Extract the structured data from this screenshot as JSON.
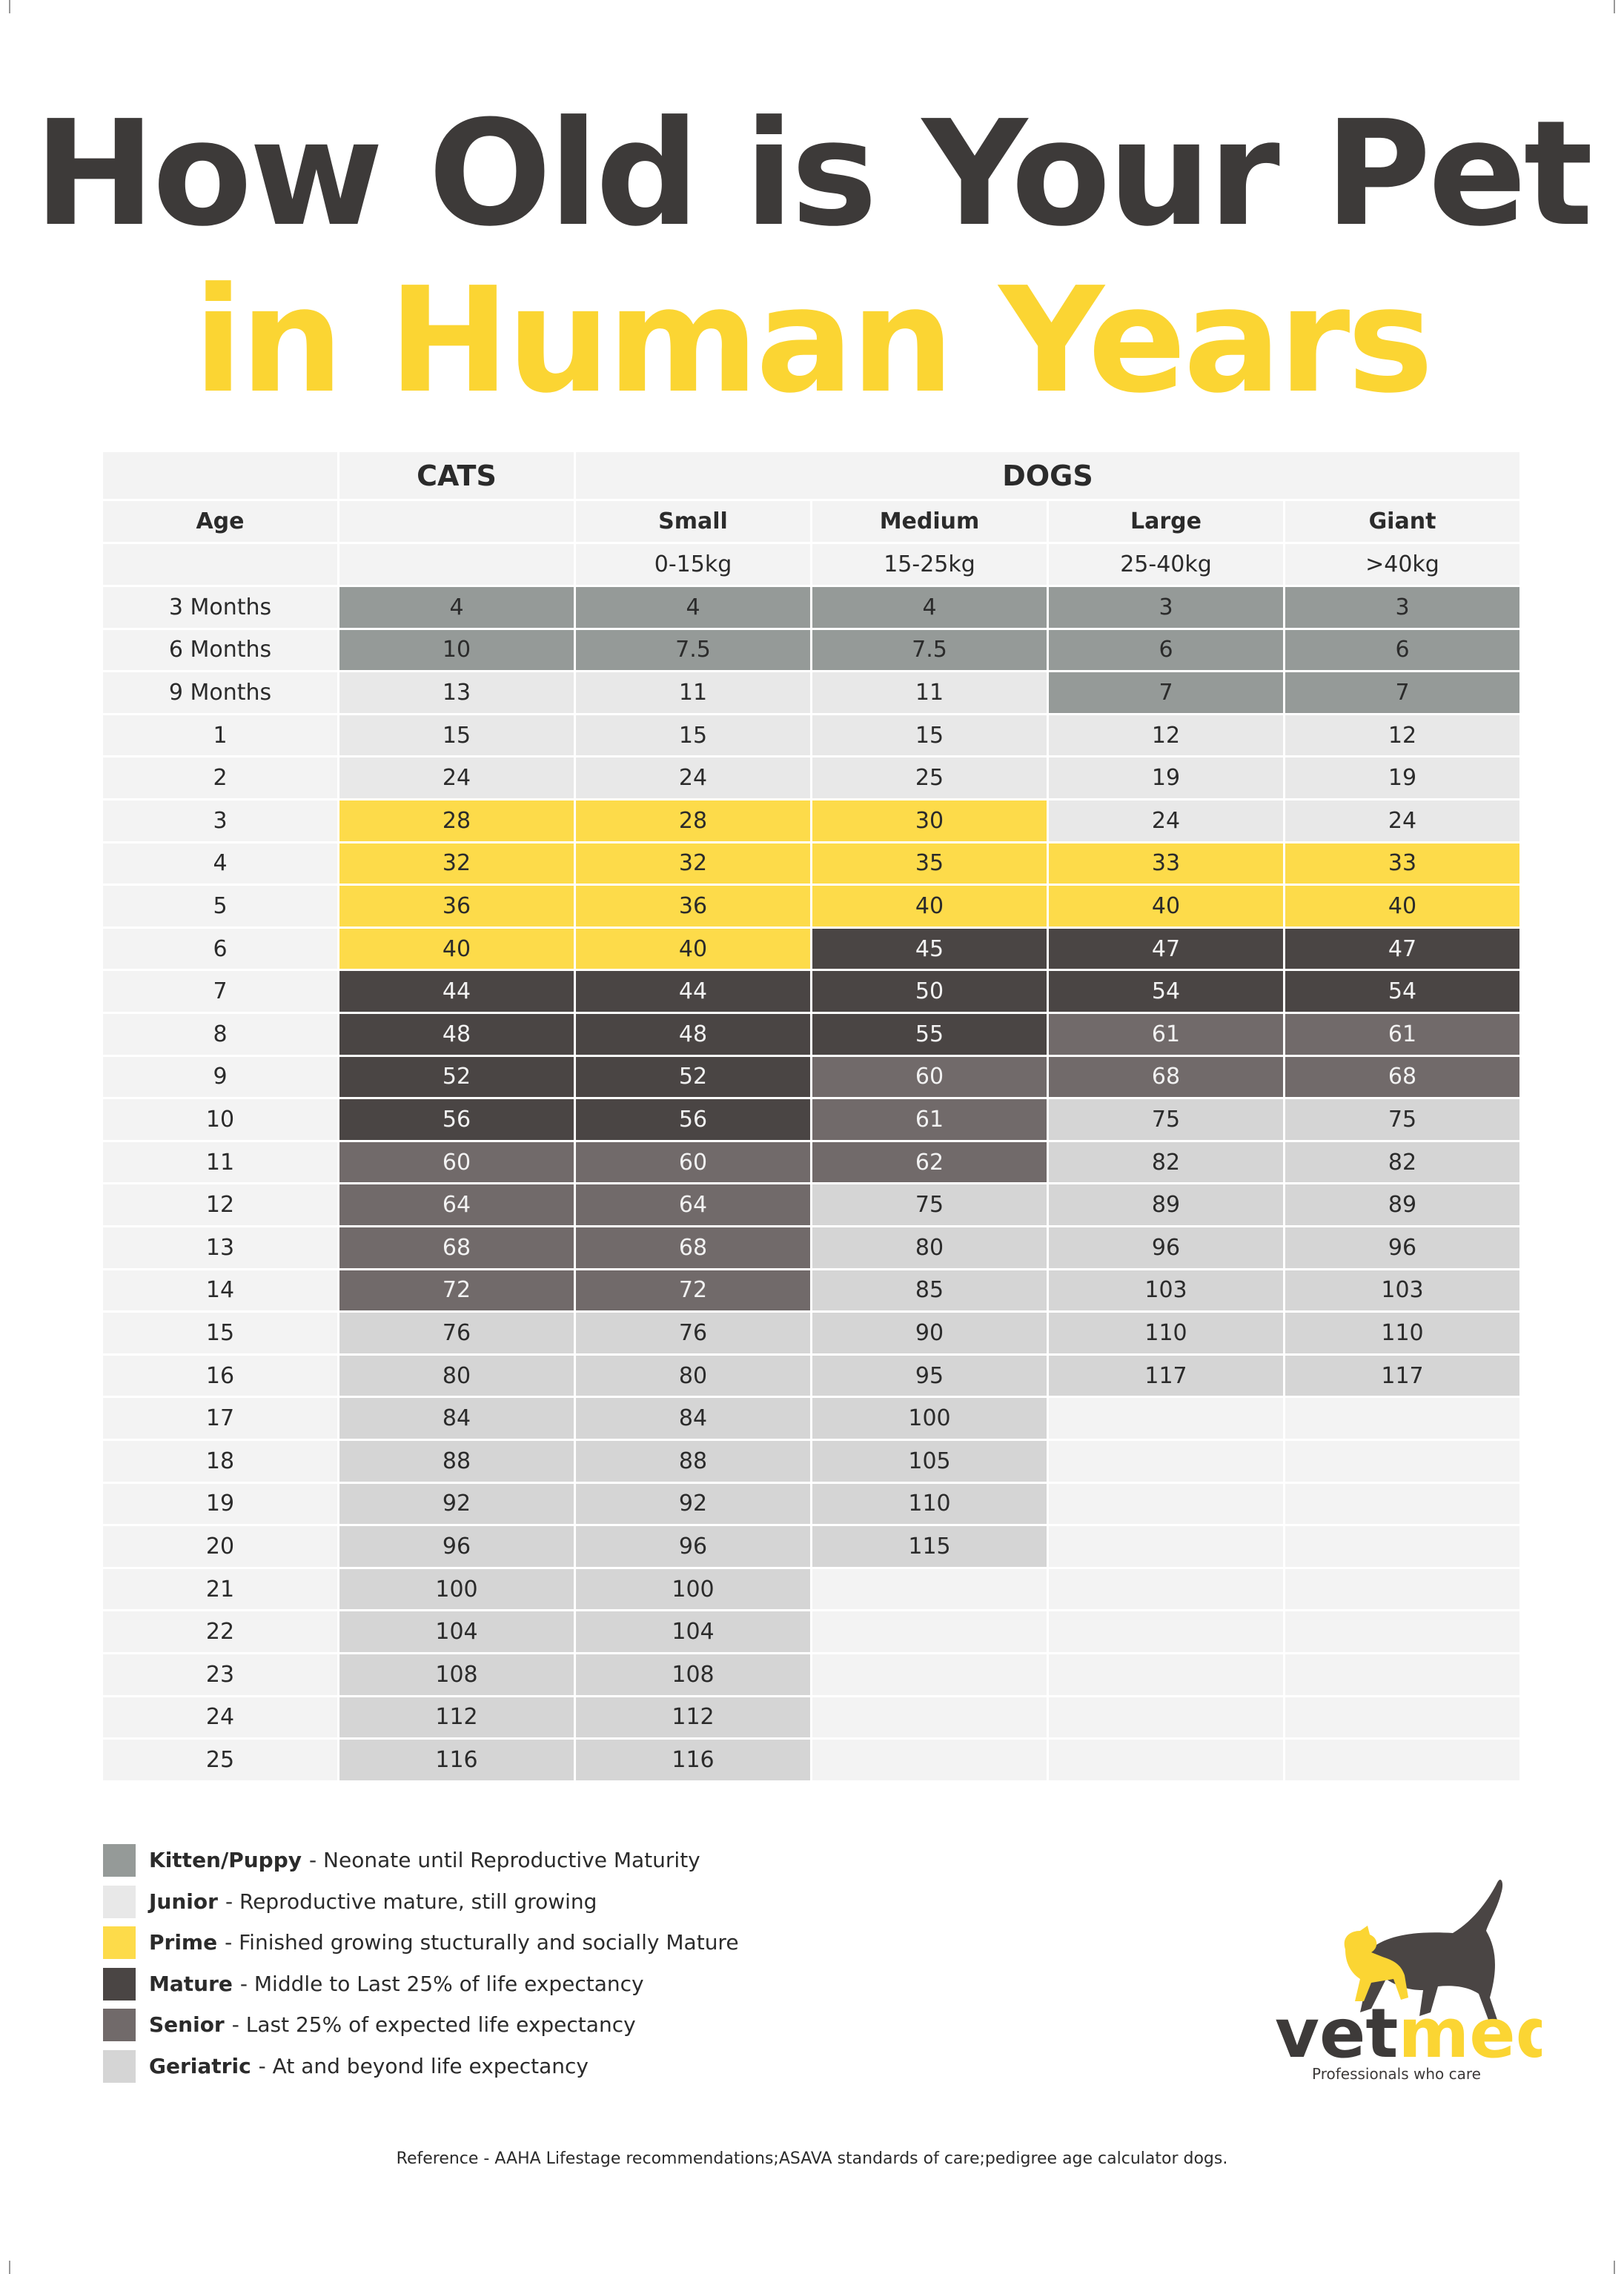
{
  "title": {
    "line1": "How Old is Your Pet",
    "line2": "in Human Years"
  },
  "table": {
    "header": {
      "cats": "CATS",
      "dogs": "DOGS",
      "age": "Age",
      "sizes": [
        "Small",
        "Medium",
        "Large",
        "Giant"
      ],
      "weights": [
        "0-15kg",
        "15-25kg",
        "25-40kg",
        ">40kg"
      ]
    },
    "empty_color": "#f3f3f3",
    "rows": [
      {
        "age": "3 Months",
        "values": [
          4,
          4,
          4,
          3,
          3
        ],
        "colors": [
          "#959a98",
          "#959a98",
          "#959a98",
          "#959a98",
          "#959a98"
        ]
      },
      {
        "age": "6 Months",
        "values": [
          10,
          7.5,
          7.5,
          6,
          6
        ],
        "colors": [
          "#959a98",
          "#959a98",
          "#959a98",
          "#959a98",
          "#959a98"
        ]
      },
      {
        "age": "9 Months",
        "values": [
          13,
          11,
          11,
          7,
          7
        ],
        "colors": [
          "#e8e8e8",
          "#e8e8e8",
          "#e8e8e8",
          "#959a98",
          "#959a98"
        ]
      },
      {
        "age": "1",
        "values": [
          15,
          15,
          15,
          12,
          12
        ],
        "colors": [
          "#e8e8e8",
          "#e8e8e8",
          "#e8e8e8",
          "#e8e8e8",
          "#e8e8e8"
        ]
      },
      {
        "age": "2",
        "values": [
          24,
          24,
          25,
          19,
          19
        ],
        "colors": [
          "#e8e8e8",
          "#e8e8e8",
          "#e8e8e8",
          "#e8e8e8",
          "#e8e8e8"
        ]
      },
      {
        "age": "3",
        "values": [
          28,
          28,
          30,
          24,
          24
        ],
        "colors": [
          "#fddb4a",
          "#fddb4a",
          "#fddb4a",
          "#e8e8e8",
          "#e8e8e8"
        ]
      },
      {
        "age": "4",
        "values": [
          32,
          32,
          35,
          33,
          33
        ],
        "colors": [
          "#fddb4a",
          "#fddb4a",
          "#fddb4a",
          "#fddb4a",
          "#fddb4a"
        ]
      },
      {
        "age": "5",
        "values": [
          36,
          36,
          40,
          40,
          40
        ],
        "colors": [
          "#fddb4a",
          "#fddb4a",
          "#fddb4a",
          "#fddb4a",
          "#fddb4a"
        ]
      },
      {
        "age": "6",
        "values": [
          40,
          40,
          45,
          47,
          47
        ],
        "colors": [
          "#fddb4a",
          "#fddb4a",
          "#4a4544",
          "#4a4544",
          "#4a4544"
        ]
      },
      {
        "age": "7",
        "values": [
          44,
          44,
          50,
          54,
          54
        ],
        "colors": [
          "#4a4544",
          "#4a4544",
          "#4a4544",
          "#4a4544",
          "#4a4544"
        ]
      },
      {
        "age": "8",
        "values": [
          48,
          48,
          55,
          61,
          61
        ],
        "colors": [
          "#4a4544",
          "#4a4544",
          "#4a4544",
          "#716a6a",
          "#716a6a"
        ]
      },
      {
        "age": "9",
        "values": [
          52,
          52,
          60,
          68,
          68
        ],
        "colors": [
          "#4a4544",
          "#4a4544",
          "#716a6a",
          "#716a6a",
          "#716a6a"
        ]
      },
      {
        "age": "10",
        "values": [
          56,
          56,
          61,
          75,
          75
        ],
        "colors": [
          "#4a4544",
          "#4a4544",
          "#716a6a",
          "#d5d5d5",
          "#d5d5d5"
        ]
      },
      {
        "age": "11",
        "values": [
          60,
          60,
          62,
          82,
          82
        ],
        "colors": [
          "#716a6a",
          "#716a6a",
          "#716a6a",
          "#d5d5d5",
          "#d5d5d5"
        ]
      },
      {
        "age": "12",
        "values": [
          64,
          64,
          75,
          89,
          89
        ],
        "colors": [
          "#716a6a",
          "#716a6a",
          "#d5d5d5",
          "#d5d5d5",
          "#d5d5d5"
        ]
      },
      {
        "age": "13",
        "values": [
          68,
          68,
          80,
          96,
          96
        ],
        "colors": [
          "#716a6a",
          "#716a6a",
          "#d5d5d5",
          "#d5d5d5",
          "#d5d5d5"
        ]
      },
      {
        "age": "14",
        "values": [
          72,
          72,
          85,
          103,
          103
        ],
        "colors": [
          "#716a6a",
          "#716a6a",
          "#d5d5d5",
          "#d5d5d5",
          "#d5d5d5"
        ]
      },
      {
        "age": "15",
        "values": [
          76,
          76,
          90,
          110,
          110
        ],
        "colors": [
          "#d5d5d5",
          "#d5d5d5",
          "#d5d5d5",
          "#d5d5d5",
          "#d5d5d5"
        ]
      },
      {
        "age": "16",
        "values": [
          80,
          80,
          95,
          117,
          117
        ],
        "colors": [
          "#d5d5d5",
          "#d5d5d5",
          "#d5d5d5",
          "#d5d5d5",
          "#d5d5d5"
        ]
      },
      {
        "age": "17",
        "values": [
          84,
          84,
          100,
          null,
          null
        ],
        "colors": [
          "#d5d5d5",
          "#d5d5d5",
          "#d5d5d5",
          null,
          null
        ]
      },
      {
        "age": "18",
        "values": [
          88,
          88,
          105,
          null,
          null
        ],
        "colors": [
          "#d5d5d5",
          "#d5d5d5",
          "#d5d5d5",
          null,
          null
        ]
      },
      {
        "age": "19",
        "values": [
          92,
          92,
          110,
          null,
          null
        ],
        "colors": [
          "#d5d5d5",
          "#d5d5d5",
          "#d5d5d5",
          null,
          null
        ]
      },
      {
        "age": "20",
        "values": [
          96,
          96,
          115,
          null,
          null
        ],
        "colors": [
          "#d5d5d5",
          "#d5d5d5",
          "#d5d5d5",
          null,
          null
        ]
      },
      {
        "age": "21",
        "values": [
          100,
          100,
          null,
          null,
          null
        ],
        "colors": [
          "#d5d5d5",
          "#d5d5d5",
          null,
          null,
          null
        ]
      },
      {
        "age": "22",
        "values": [
          104,
          104,
          null,
          null,
          null
        ],
        "colors": [
          "#d5d5d5",
          "#d5d5d5",
          null,
          null,
          null
        ]
      },
      {
        "age": "23",
        "values": [
          108,
          108,
          null,
          null,
          null
        ],
        "colors": [
          "#d5d5d5",
          "#d5d5d5",
          null,
          null,
          null
        ]
      },
      {
        "age": "24",
        "values": [
          112,
          112,
          null,
          null,
          null
        ],
        "colors": [
          "#d5d5d5",
          "#d5d5d5",
          null,
          null,
          null
        ]
      },
      {
        "age": "25",
        "values": [
          116,
          116,
          null,
          null,
          null
        ],
        "colors": [
          "#d5d5d5",
          "#d5d5d5",
          null,
          null,
          null
        ]
      }
    ]
  },
  "legend": [
    {
      "name": "Kitten/Puppy",
      "description": "- Neonate until Reproductive Maturity",
      "color": "#959a98"
    },
    {
      "name": "Junior",
      "description": "- Reproductive mature, still growing",
      "color": "#e8e8e8"
    },
    {
      "name": "Prime",
      "description": "- Finished growing stucturally and socially Mature",
      "color": "#fddb4a"
    },
    {
      "name": "Mature",
      "description": "- Middle to Last 25% of life expectancy",
      "color": "#4a4544"
    },
    {
      "name": "Senior",
      "description": "- Last 25% of expected life expectancy",
      "color": "#716a6a"
    },
    {
      "name": "Geriatric",
      "description": "- At and beyond life expectancy",
      "color": "#d5d5d5"
    }
  ],
  "logo": {
    "part1": "vet",
    "part2": "med",
    "tagline": "Professionals who care"
  },
  "reference": "Reference - AAHA Lifestage recommendations;ASAVA standards of care;pedigree age calculator dogs."
}
